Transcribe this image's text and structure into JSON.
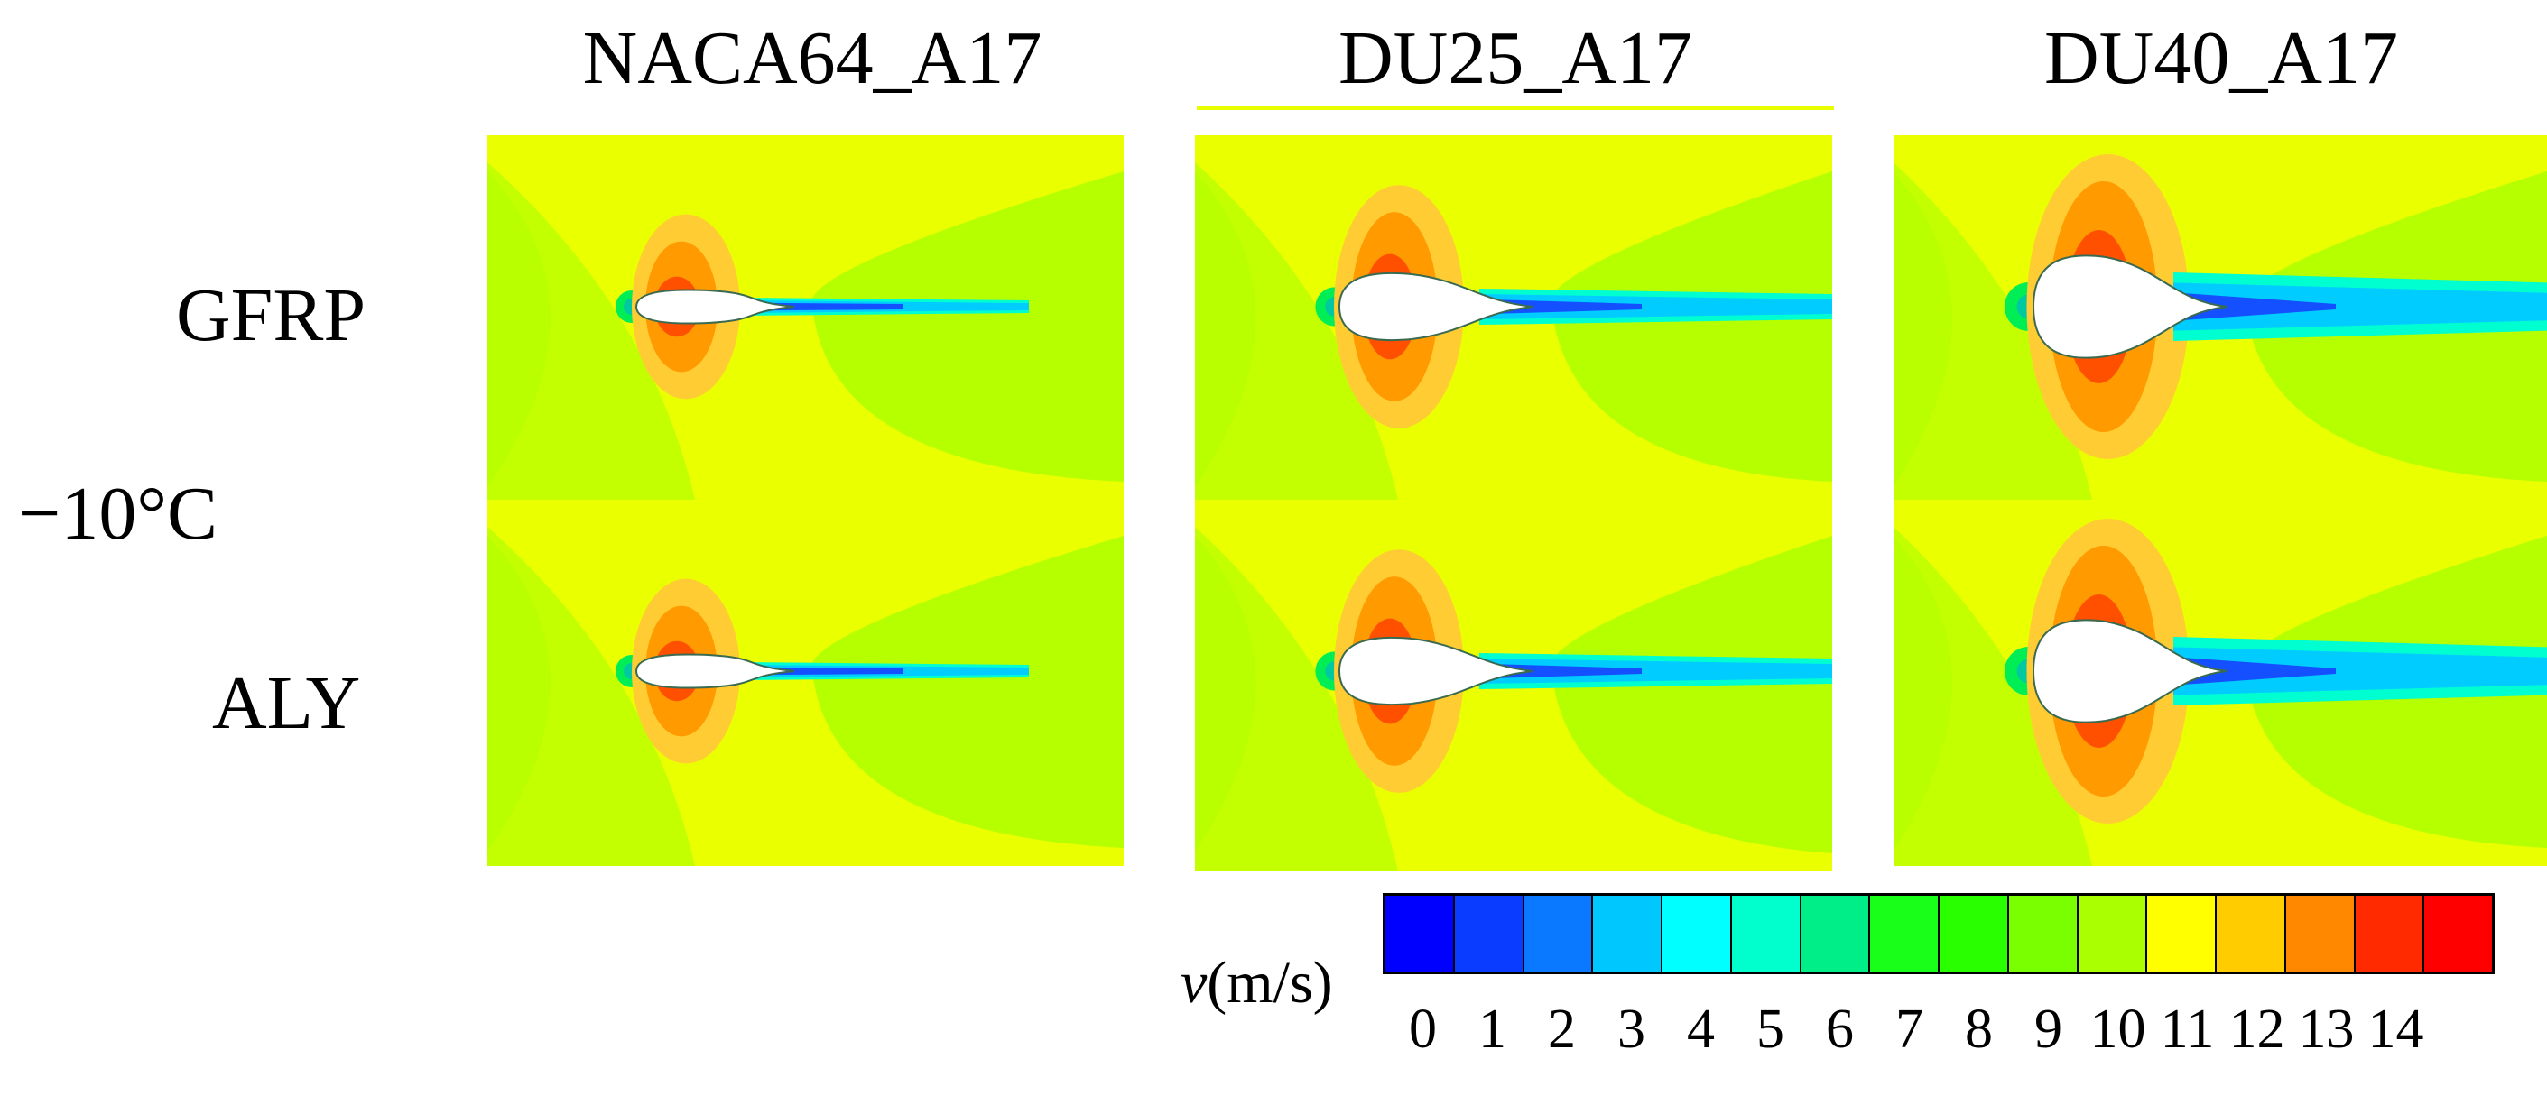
{
  "columns": [
    {
      "title": "NACA64_A17"
    },
    {
      "title": "DU25_A17"
    },
    {
      "title": "DU40_A17"
    }
  ],
  "rows": [
    {
      "label": "GFRP"
    },
    {
      "label": "ALY"
    }
  ],
  "temperature_label": "−10°C",
  "colorbar": {
    "variable": "v",
    "unit": "(m/s)",
    "ticks": [
      "0",
      "1",
      "2",
      "3",
      "4",
      "5",
      "6",
      "7",
      "8",
      "9",
      "10",
      "11",
      "12",
      "13",
      "14"
    ],
    "colors": [
      "#0000ff",
      "#0a3cff",
      "#0a78ff",
      "#00c8ff",
      "#00ffff",
      "#00ffcc",
      "#00ee88",
      "#19ff19",
      "#2aff00",
      "#7aff00",
      "#aaff00",
      "#ffff00",
      "#ffcc00",
      "#ff8800",
      "#ff2a00",
      "#ff0000"
    ]
  },
  "field_colors": {
    "background": "#eaff00",
    "wake_outer": "#b6ff00",
    "lobe_light": "#ffcc33",
    "lobe_mid": "#ff9a00",
    "lobe_core": "#ff5000",
    "stagnation": "#00ee55",
    "wake_core": "#1450ff",
    "wake_mid": "#00ccff",
    "wake_edge": "#00ffd0",
    "airfoil": "#ffffff"
  }
}
